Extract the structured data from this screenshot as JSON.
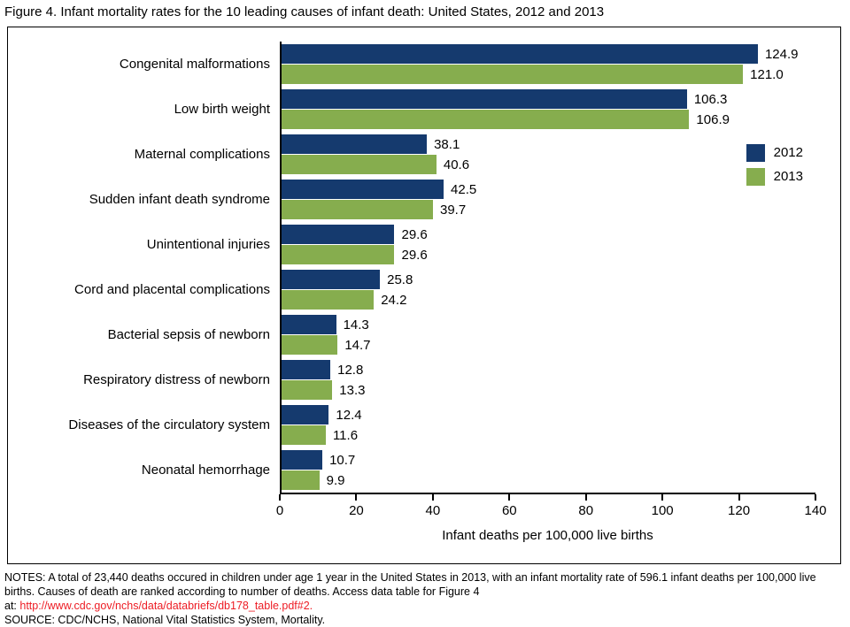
{
  "title": "Figure 4. Infant mortality rates for the 10 leading causes of infant death: United States, 2012 and 2013",
  "chart_data": {
    "type": "bar",
    "orientation": "horizontal",
    "categories": [
      "Congenital malformations",
      "Low birth weight",
      "Maternal complications",
      "Sudden infant death syndrome",
      "Unintentional injuries",
      "Cord and placental complications",
      "Bacterial sepsis of newborn",
      "Respiratory distress of newborn",
      "Diseases of the circulatory system",
      "Neonatal hemorrhage"
    ],
    "series": [
      {
        "name": "2012",
        "color": "#153a6e",
        "values": [
          124.9,
          106.3,
          38.1,
          42.5,
          29.6,
          25.8,
          14.3,
          12.8,
          12.4,
          10.7
        ]
      },
      {
        "name": "2013",
        "color": "#86ad4e",
        "values": [
          121.0,
          106.9,
          40.6,
          39.7,
          29.6,
          24.2,
          14.7,
          13.3,
          11.6,
          9.9
        ]
      }
    ],
    "xlabel": "Infant deaths per 100,000 live births",
    "xlim": [
      0,
      140
    ],
    "xticks": [
      0,
      20,
      40,
      60,
      80,
      100,
      120,
      140
    ],
    "grid": false,
    "legend_position": "right"
  },
  "notes": {
    "text": "NOTES: A total of 23,440 deaths occured in children under age 1 year in the United States in 2013, with an infant mortality rate of 596.1 infant deaths per 100,000 live births. Causes of death are ranked according to number of deaths. Access data table for Figure 4",
    "link_prefix": "at: ",
    "link": "http://www.cdc.gov/nchs/data/databriefs/db178_table.pdf#2.",
    "source": "SOURCE: CDC/NCHS, National Vital Statistics System, Mortality."
  },
  "colors": {
    "bar_2012": "#153a6e",
    "bar_2013": "#86ad4e",
    "link": "#ed1c24",
    "axis": "#000000"
  }
}
